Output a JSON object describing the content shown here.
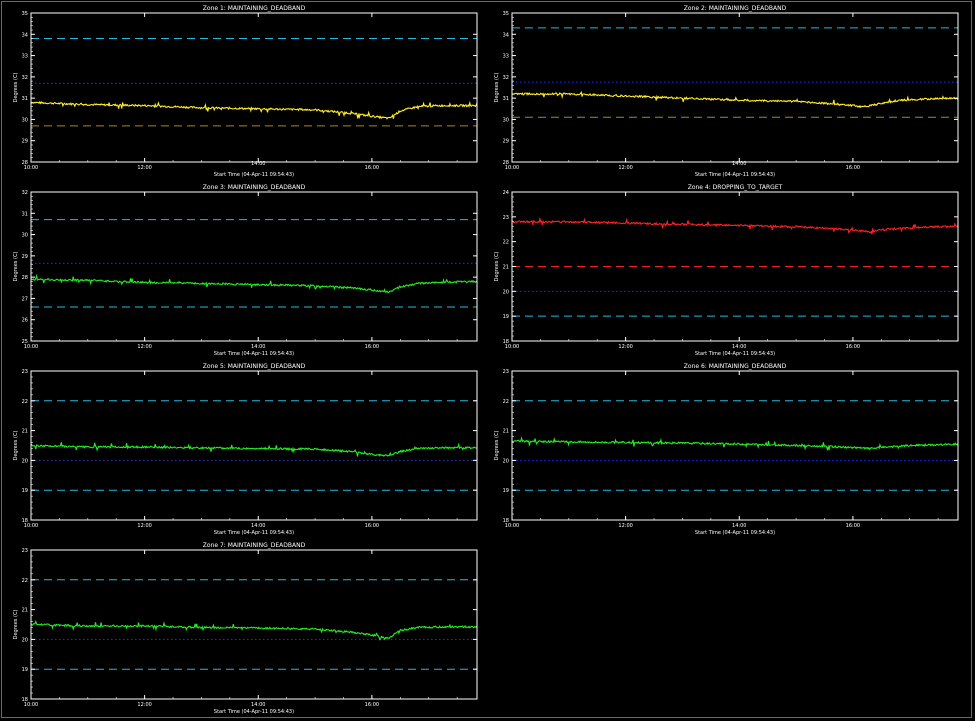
{
  "x_ticks": [
    "10:00",
    "12:00",
    "14:00",
    "16:00"
  ],
  "x_label": "Start Time (04-Apr-11 09:54:43)",
  "y_label": "Degrees (C)",
  "colors": {
    "background": "#000000",
    "axes": "#ffffff",
    "green_trace": "#22ee22",
    "yellow_trace": "#ffee22",
    "red_trace": "#ff2222",
    "cyan_dash": "#22bbdd",
    "blue_dot": "#2233ff",
    "olive_dash": "#aa8822",
    "red_dash": "#ee2222"
  },
  "chart_data": [
    {
      "type": "line",
      "title": "Zone 1: MAINTAINING_DEADBAND",
      "xlabel": "Start Time (04-Apr-11 09:54:43)",
      "ylabel": "Degrees (C)",
      "yticks": [
        "28",
        "29",
        "30",
        "31",
        "32",
        "33",
        "34",
        "35"
      ],
      "ylim": [
        28,
        35
      ],
      "xlim_hours": [
        10.0,
        17.85
      ],
      "series": [
        {
          "color": "#ffee22",
          "x": [
            10.0,
            11.0,
            12.0,
            13.0,
            14.0,
            15.0,
            15.6,
            16.0,
            16.3,
            16.5,
            16.8,
            17.2,
            17.85
          ],
          "y": [
            30.8,
            30.7,
            30.65,
            30.55,
            30.5,
            30.45,
            30.3,
            30.15,
            30.05,
            30.4,
            30.6,
            30.65,
            30.65
          ]
        }
      ],
      "reference_lines": [
        {
          "y": 33.8,
          "style": "dashed",
          "color": "#22bbdd"
        },
        {
          "y": 31.7,
          "style": "dotted",
          "color": "#2233ff"
        },
        {
          "y": 29.7,
          "style": "dashed",
          "color": "#aa8822"
        }
      ],
      "grid": false
    },
    {
      "type": "line",
      "title": "Zone 2: MAINTAINING_DEADBAND",
      "xlabel": "Start Time (04-Apr-11 09:54:43)",
      "ylabel": "Degrees (C)",
      "yticks": [
        "28",
        "29",
        "30",
        "31",
        "32",
        "33",
        "34",
        "35"
      ],
      "ylim": [
        28,
        35
      ],
      "xlim_hours": [
        10.0,
        17.85
      ],
      "series": [
        {
          "color": "#ffee22",
          "x": [
            10.0,
            11.0,
            12.0,
            13.0,
            14.0,
            15.0,
            15.8,
            16.2,
            16.5,
            16.8,
            17.2,
            17.85
          ],
          "y": [
            31.2,
            31.2,
            31.1,
            31.0,
            30.9,
            30.85,
            30.7,
            30.6,
            30.75,
            30.9,
            30.95,
            31.0
          ]
        }
      ],
      "reference_lines": [
        {
          "y": 34.3,
          "style": "dashed",
          "color": "#22bbdd"
        },
        {
          "y": 31.75,
          "style": "dotted",
          "color": "#2233ff"
        },
        {
          "y": 30.1,
          "style": "dashed",
          "color": "#aa8822"
        }
      ],
      "grid": false
    },
    {
      "type": "line",
      "title": "Zone 3: MAINTAINING_DEADBAND",
      "xlabel": "Start Time (04-Apr-11 09:54:43)",
      "ylabel": "Degrees (C)",
      "yticks": [
        "25",
        "26",
        "27",
        "28",
        "29",
        "30",
        "31",
        "32"
      ],
      "ylim": [
        25,
        32
      ],
      "xlim_hours": [
        10.0,
        17.85
      ],
      "series": [
        {
          "color": "#22ee22",
          "x": [
            10.0,
            11.0,
            12.0,
            13.0,
            14.0,
            15.0,
            15.6,
            16.0,
            16.3,
            16.5,
            16.8,
            17.2,
            17.85
          ],
          "y": [
            27.9,
            27.85,
            27.75,
            27.7,
            27.65,
            27.6,
            27.5,
            27.4,
            27.3,
            27.55,
            27.7,
            27.75,
            27.8
          ]
        }
      ],
      "reference_lines": [
        {
          "y": 30.7,
          "style": "dashed",
          "color": "#22bbdd"
        },
        {
          "y": 28.65,
          "style": "dotted",
          "color": "#2233ff"
        },
        {
          "y": 26.6,
          "style": "dashed",
          "color": "#22bbdd"
        }
      ],
      "grid": false
    },
    {
      "type": "line",
      "title": "Zone 4: DROPPING_TO_TARGET",
      "xlabel": "Start Time (04-Apr-11 09:54:43)",
      "ylabel": "Degrees (C)",
      "yticks": [
        "18",
        "19",
        "20",
        "21",
        "22",
        "23",
        "24"
      ],
      "ylim": [
        18,
        24
      ],
      "xlim_hours": [
        10.0,
        17.85
      ],
      "series": [
        {
          "color": "#ff2222",
          "x": [
            10.0,
            11.0,
            12.0,
            13.0,
            14.0,
            15.0,
            15.8,
            16.3,
            16.6,
            17.0,
            17.4,
            17.85
          ],
          "y": [
            22.8,
            22.8,
            22.75,
            22.7,
            22.65,
            22.6,
            22.5,
            22.4,
            22.5,
            22.55,
            22.6,
            22.6
          ]
        }
      ],
      "reference_lines": [
        {
          "y": 21.0,
          "style": "dashed",
          "color": "#ee2222"
        },
        {
          "y": 20.0,
          "style": "dotted",
          "color": "#2233ff"
        },
        {
          "y": 19.0,
          "style": "dashed",
          "color": "#22bbdd"
        }
      ],
      "grid": false
    },
    {
      "type": "line",
      "title": "Zone 5: MAINTAINING_DEADBAND",
      "xlabel": "Start Time (04-Apr-11 09:54:43)",
      "ylabel": "Degrees (C)",
      "yticks": [
        "18",
        "19",
        "20",
        "21",
        "22",
        "23"
      ],
      "ylim": [
        18,
        23
      ],
      "xlim_hours": [
        10.0,
        17.85
      ],
      "series": [
        {
          "color": "#22ee22",
          "x": [
            10.0,
            11.0,
            12.0,
            13.0,
            14.0,
            15.0,
            15.6,
            16.0,
            16.3,
            16.5,
            16.8,
            17.2,
            17.85
          ],
          "y": [
            20.5,
            20.45,
            20.45,
            20.42,
            20.4,
            20.38,
            20.3,
            20.2,
            20.15,
            20.3,
            20.4,
            20.42,
            20.42
          ]
        }
      ],
      "reference_lines": [
        {
          "y": 22.0,
          "style": "dashed",
          "color": "#22bbdd"
        },
        {
          "y": 20.0,
          "style": "dotted",
          "color": "#2233ff"
        },
        {
          "y": 19.0,
          "style": "dashed",
          "color": "#22bbdd"
        }
      ],
      "grid": false
    },
    {
      "type": "line",
      "title": "Zone 6: MAINTAINING_DEADBAND",
      "xlabel": "Start Time (04-Apr-11 09:54:43)",
      "ylabel": "Degrees (C)",
      "yticks": [
        "18",
        "19",
        "20",
        "21",
        "22",
        "23"
      ],
      "ylim": [
        18,
        23
      ],
      "xlim_hours": [
        10.0,
        17.85
      ],
      "series": [
        {
          "color": "#22ee22",
          "x": [
            10.0,
            11.0,
            12.0,
            13.0,
            14.0,
            15.0,
            15.8,
            16.3,
            16.6,
            17.0,
            17.4,
            17.85
          ],
          "y": [
            20.65,
            20.62,
            20.6,
            20.58,
            20.55,
            20.5,
            20.45,
            20.4,
            20.45,
            20.5,
            20.52,
            20.55
          ]
        }
      ],
      "reference_lines": [
        {
          "y": 22.0,
          "style": "dashed",
          "color": "#22bbdd"
        },
        {
          "y": 20.0,
          "style": "dotted",
          "color": "#2233ff"
        },
        {
          "y": 19.0,
          "style": "dashed",
          "color": "#22bbdd"
        }
      ],
      "grid": false
    },
    {
      "type": "line",
      "title": "Zone 7: MAINTAINING_DEADBAND",
      "xlabel": "Start Time (04-Apr-11 09:54:43)",
      "ylabel": "Degrees (C)",
      "yticks": [
        "18",
        "19",
        "20",
        "21",
        "22",
        "23"
      ],
      "ylim": [
        18,
        23
      ],
      "xlim_hours": [
        10.0,
        17.85
      ],
      "series": [
        {
          "color": "#22ee22",
          "x": [
            10.0,
            11.0,
            12.0,
            13.0,
            14.0,
            15.0,
            15.6,
            16.0,
            16.3,
            16.5,
            16.8,
            17.2,
            17.85
          ],
          "y": [
            20.5,
            20.45,
            20.45,
            20.4,
            20.38,
            20.35,
            20.25,
            20.15,
            20.05,
            20.3,
            20.4,
            20.42,
            20.42
          ]
        }
      ],
      "reference_lines": [
        {
          "y": 22.0,
          "style": "dashed",
          "color": "#22bbdd"
        },
        {
          "y": 20.0,
          "style": "dotted",
          "color": "#2233ff"
        },
        {
          "y": 19.0,
          "style": "dashed",
          "color": "#22bbdd"
        }
      ],
      "grid": false
    }
  ]
}
